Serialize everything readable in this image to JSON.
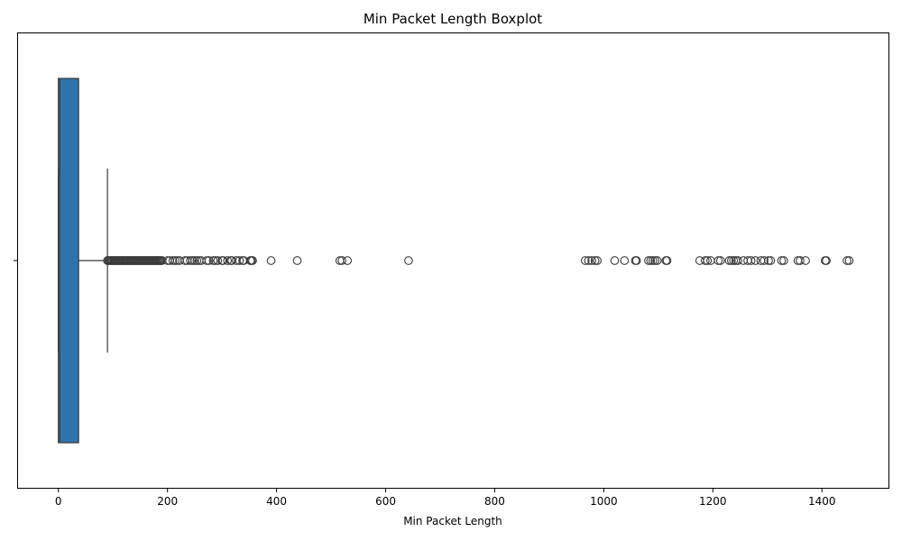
{
  "chart_data": {
    "type": "boxplot",
    "title": "Min Packet Length Boxplot",
    "xlabel": "Min Packet Length",
    "ylabel": "",
    "xlim": [
      -74,
      1522
    ],
    "xticks": [
      0,
      200,
      400,
      600,
      800,
      1000,
      1200,
      1400
    ],
    "xtick_labels": [
      "0",
      "200",
      "400",
      "600",
      "800",
      "1000",
      "1200",
      "1400"
    ],
    "orientation": "horizontal",
    "box_color": "#2f73ad",
    "line_color": "#3a3a3a",
    "box": {
      "min": 0,
      "q1": 0,
      "median": 2,
      "q3": 37,
      "whisker_low": 0,
      "whisker_high": 90
    },
    "outliers": [
      90,
      92,
      94,
      96,
      98,
      100,
      102,
      104,
      106,
      108,
      110,
      112,
      114,
      116,
      118,
      120,
      122,
      124,
      126,
      128,
      130,
      132,
      134,
      136,
      138,
      140,
      142,
      144,
      146,
      148,
      150,
      152,
      154,
      156,
      158,
      160,
      162,
      164,
      166,
      168,
      170,
      172,
      174,
      176,
      178,
      180,
      182,
      184,
      186,
      188,
      190,
      200,
      204,
      210,
      214,
      218,
      222,
      232,
      236,
      242,
      246,
      250,
      254,
      258,
      262,
      272,
      276,
      284,
      288,
      292,
      300,
      302,
      310,
      316,
      318,
      326,
      332,
      338,
      340,
      352,
      354,
      356,
      390,
      438,
      516,
      520,
      530,
      642,
      966,
      972,
      978,
      984,
      988,
      1020,
      1038,
      1058,
      1060,
      1082,
      1086,
      1090,
      1094,
      1098,
      1114,
      1116,
      1176,
      1186,
      1190,
      1196,
      1210,
      1214,
      1230,
      1234,
      1238,
      1242,
      1246,
      1256,
      1264,
      1270,
      1278,
      1288,
      1294,
      1302,
      1306,
      1326,
      1330,
      1356,
      1360,
      1370,
      1406,
      1408,
      1446,
      1450
    ]
  }
}
